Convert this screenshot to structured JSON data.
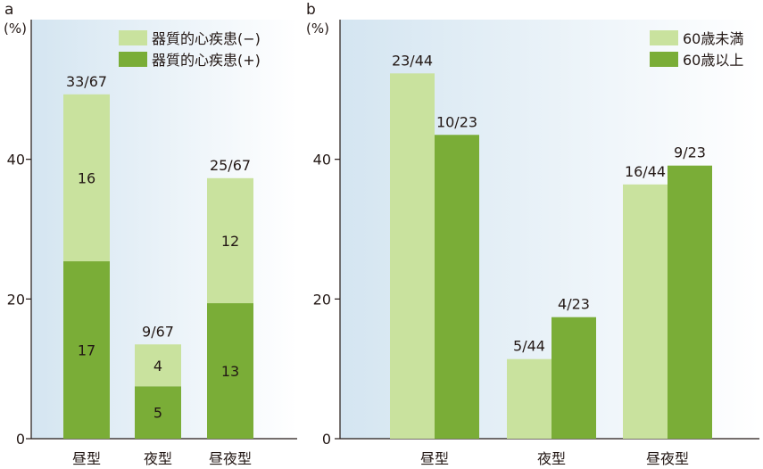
{
  "colors": {
    "light_green": "#c9e29e",
    "dark_green": "#7aad37",
    "panel_bg_left": "#d4e5f1",
    "panel_bg_right": "#ffffff",
    "axis": "#231815"
  },
  "chart_data": [
    {
      "type": "bar",
      "stacked": true,
      "panel_label": "a",
      "unit_label": "(%)",
      "categories": [
        "昼型",
        "夜型",
        "昼夜型"
      ],
      "ylim": [
        0,
        60
      ],
      "yticks": [
        0,
        20,
        40
      ],
      "legend_position": "top-right",
      "series": [
        {
          "name": "器質的心疾患(+)",
          "color": "dark_green",
          "values": [
            25.4,
            7.5,
            19.4
          ],
          "labels": [
            "17",
            "5",
            "13"
          ]
        },
        {
          "name": "器質的心疾患(−)",
          "color": "light_green",
          "values": [
            23.9,
            6.0,
            17.9
          ],
          "labels": [
            "16",
            "4",
            "12"
          ]
        }
      ],
      "total_labels": [
        "33/67",
        "9/67",
        "25/67"
      ]
    },
    {
      "type": "bar",
      "stacked": false,
      "panel_label": "b",
      "unit_label": "(%)",
      "categories": [
        "昼型",
        "夜型",
        "昼夜型"
      ],
      "ylim": [
        0,
        60
      ],
      "yticks": [
        0,
        20,
        40
      ],
      "legend_position": "top-right",
      "series": [
        {
          "name": "60歳未満",
          "color": "light_green",
          "values": [
            52.3,
            11.4,
            36.4
          ],
          "labels": [
            "23/44",
            "5/44",
            "16/44"
          ]
        },
        {
          "name": "60歳以上",
          "color": "dark_green",
          "values": [
            43.5,
            17.4,
            39.1
          ],
          "labels": [
            "10/23",
            "4/23",
            "9/23"
          ]
        }
      ]
    }
  ]
}
